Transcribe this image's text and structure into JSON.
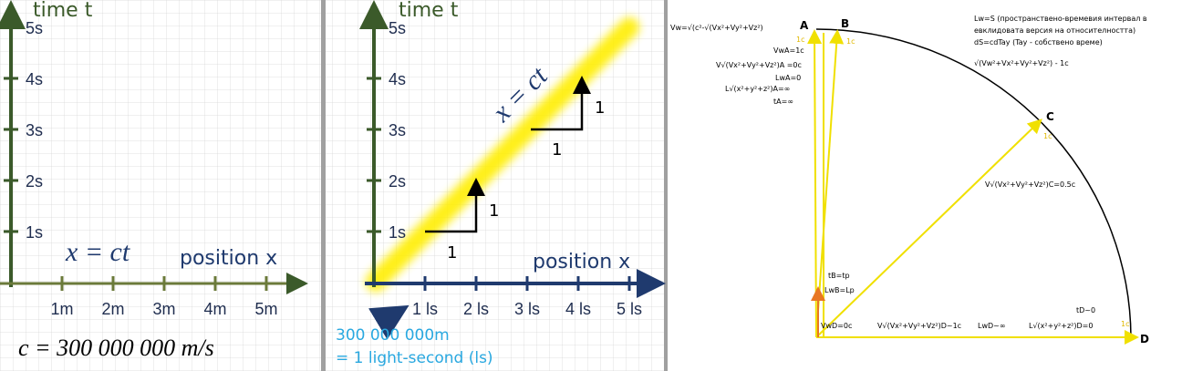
{
  "panel_1": {
    "y_axis_label": "time t",
    "y_ticks": [
      "1s",
      "2s",
      "3s",
      "4s",
      "5s"
    ],
    "x_ticks": [
      "1m",
      "2m",
      "3m",
      "4m",
      "5m"
    ],
    "x_axis_label": "position x",
    "equation": "x = ct",
    "speed": "c = 300 000 000 m/s"
  },
  "panel_2": {
    "y_axis_label": "time t",
    "y_ticks": [
      "1s",
      "2s",
      "3s",
      "4s",
      "5s"
    ],
    "x_ticks": [
      "1 ls",
      "2 ls",
      "3 ls",
      "4 ls",
      "5 ls"
    ],
    "x_axis_label": "position x",
    "equation": "x = ct",
    "step_labels": [
      "1",
      "1",
      "1",
      "1"
    ],
    "note_line_1": "300 000 000m",
    "note_line_2": "= 1 light-second (ls)"
  },
  "panel_3": {
    "points": [
      "A",
      "B",
      "C",
      "D"
    ],
    "unit_labels": [
      "1c",
      "1c",
      "1c",
      "1c"
    ],
    "vw_formula": "Vw=√(c²-√(Vx²+Vy²+Vz²)",
    "legend": [
      "Lw=S (пространствено-времевия интервал в",
      "евклидовата версия на относителността)",
      "dS=cdTay (Tay - собствено време)",
      "√(Vw²+Vx²+Vy²+Vz²) - 1c"
    ],
    "a_notes": [
      "VwA=1c",
      "V√(Vx²+Vy²+Vz²)A =0c",
      "LwA=0",
      "L√(x²+y²+z²)A=∞",
      "tA=∞"
    ],
    "c_note": "V√(Vx²+Vy²+Vz²)C=0.5c",
    "b_notes": [
      "tB=tp",
      "LwB=Lp"
    ],
    "d_notes": [
      "VwD=0c",
      "V√(Vx²+Vy²+Vz²)D~1c",
      "LwD~∞",
      "L√(x²+y²+z²)D=0",
      "tD~0"
    ]
  }
}
